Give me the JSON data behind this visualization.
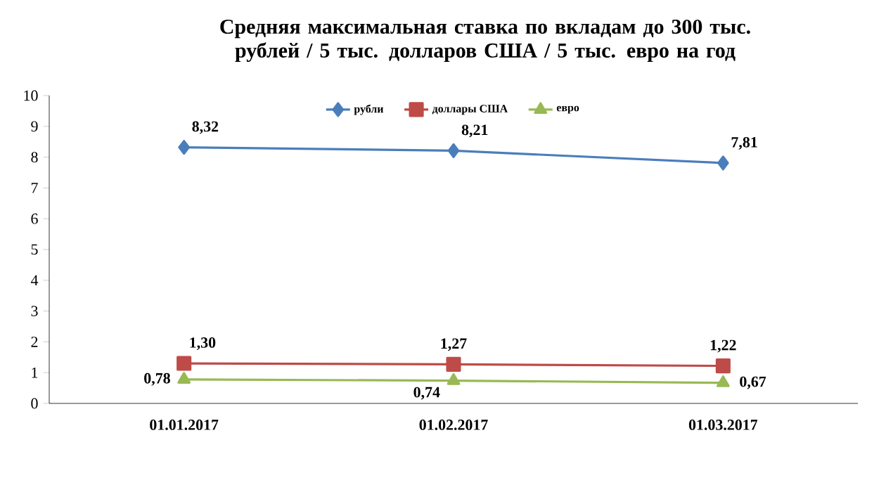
{
  "chart_data": {
    "type": "line",
    "title": "Средняя максимальная ставка по вкладам до 300 тыс. рублей / 5 тыс. долларов США / 5 тыс. евро на год",
    "categories": [
      "01.01.2017",
      "01.02.2017",
      "01.03.2017"
    ],
    "series": [
      {
        "name": "рубли",
        "color": "#4a7ebb",
        "marker": "diamond",
        "values": [
          8.32,
          8.21,
          7.81
        ],
        "value_labels": [
          "8,32",
          "8,21",
          "7,81"
        ]
      },
      {
        "name": "доллары  США",
        "color": "#be4b48",
        "marker": "square",
        "values": [
          1.3,
          1.27,
          1.22
        ],
        "value_labels": [
          "1,30",
          "1,27",
          "1,22"
        ]
      },
      {
        "name": "евро",
        "color": "#98b954",
        "marker": "triangle",
        "values": [
          0.78,
          0.74,
          0.67
        ],
        "value_labels": [
          "0,78",
          "0,74",
          "0,67"
        ]
      }
    ],
    "ylim": [
      0,
      10
    ],
    "yticks": [
      0,
      1,
      2,
      3,
      4,
      5,
      6,
      7,
      8,
      9,
      10
    ],
    "grid": false,
    "legend": "top",
    "line_style": "solid"
  }
}
